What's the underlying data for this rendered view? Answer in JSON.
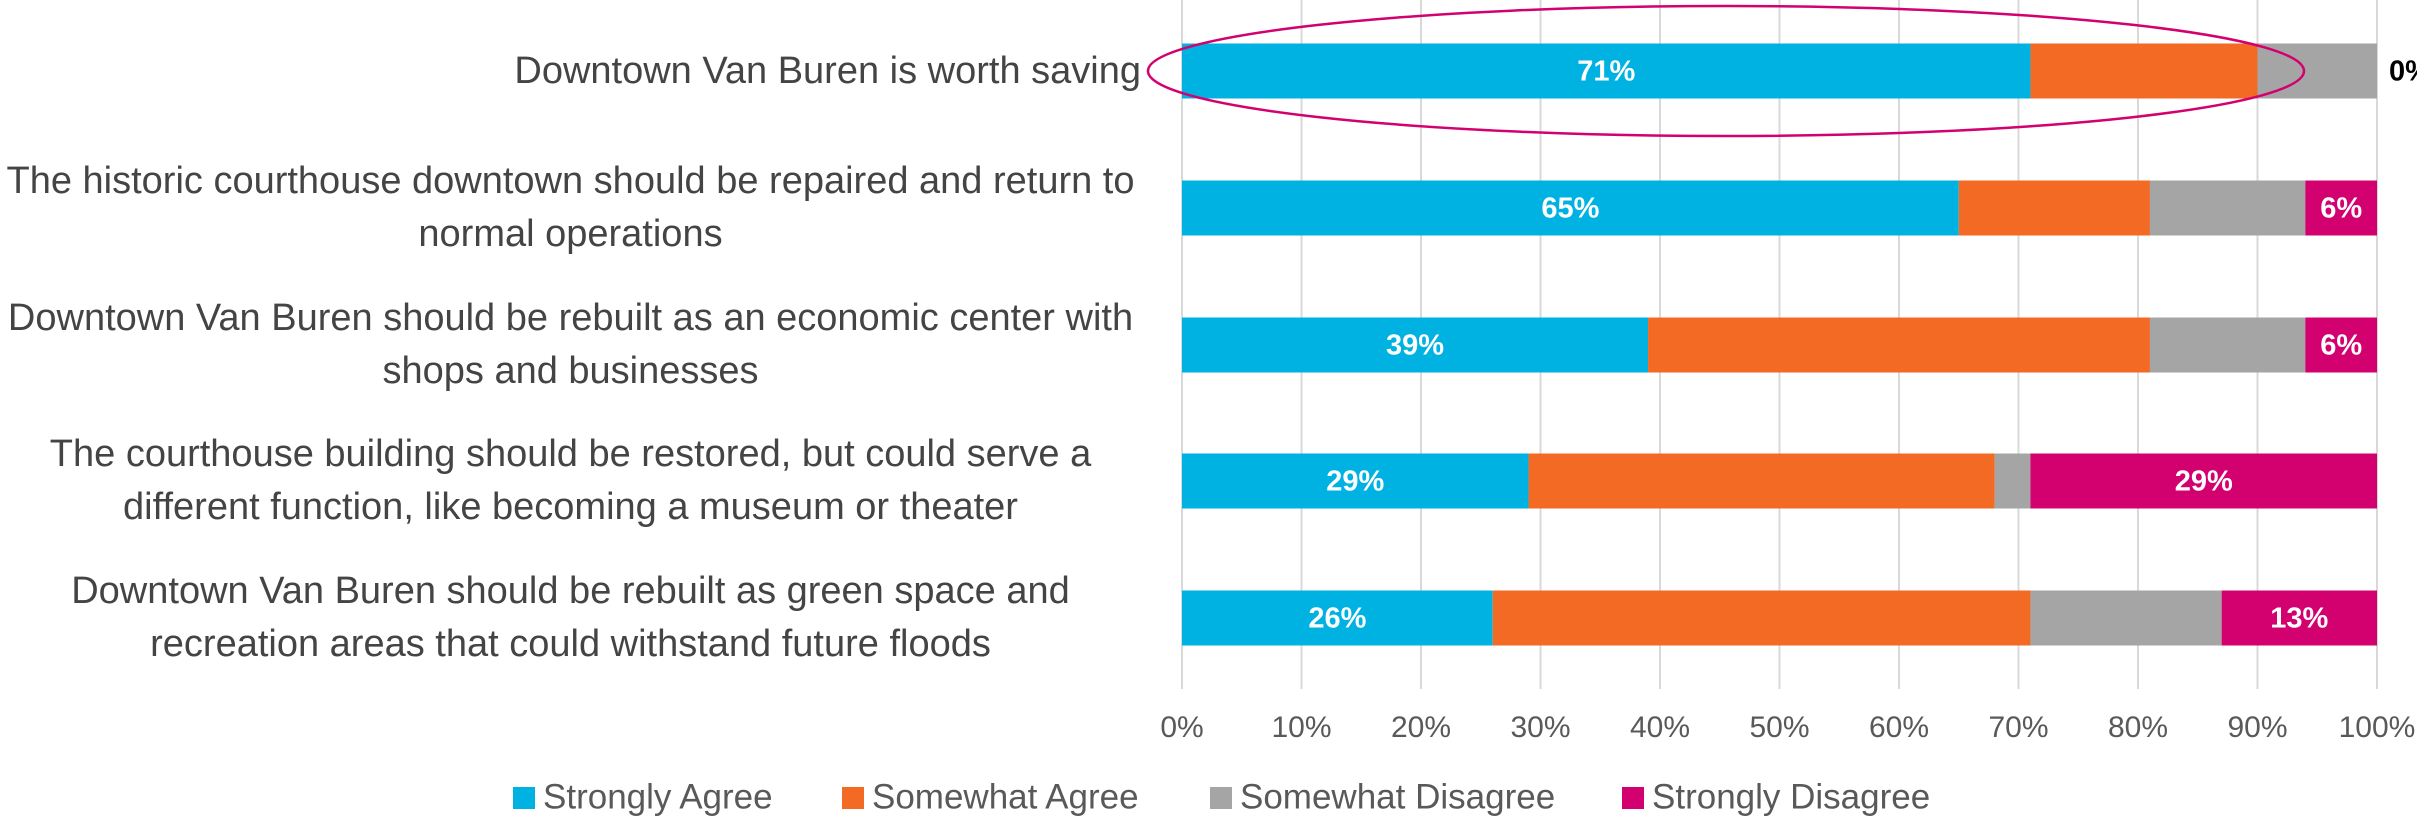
{
  "chart_data": {
    "type": "stacked-bar-horizontal",
    "categories": [
      "Downtown Van Buren is worth saving",
      "The historic courthouse downtown should be repaired and return to normal operations",
      "Downtown Van Buren should be rebuilt as an economic center with shops and businesses",
      "The courthouse building should be restored, but could serve a different function, like becoming a museum or theater",
      "Downtown Van Buren should be rebuilt as green space and recreation areas that could withstand future floods"
    ],
    "series": [
      {
        "name": "Strongly Agree",
        "color": "#00b2e2",
        "values": [
          71,
          65,
          39,
          29,
          26
        ],
        "value_labels": [
          "71%",
          "65%",
          "39%",
          "29%",
          "26%"
        ]
      },
      {
        "name": "Somewhat Agree",
        "color": "#f26a24",
        "values": [
          19,
          16,
          42,
          39,
          45
        ]
      },
      {
        "name": "Somewhat Disagree",
        "color": "#a5a5a5",
        "values": [
          10,
          13,
          13,
          3,
          16
        ]
      },
      {
        "name": "Strongly Disagree",
        "color": "#d3006f",
        "values": [
          0,
          6,
          6,
          29,
          13
        ],
        "value_labels": [
          "0%",
          "6%",
          "6%",
          "29%",
          "13%"
        ]
      }
    ],
    "xlim": [
      0,
      100
    ],
    "xticks": [
      {
        "value": 0,
        "label": "0%"
      },
      {
        "value": 10,
        "label": "10%"
      },
      {
        "value": 20,
        "label": "20%"
      },
      {
        "value": 30,
        "label": "30%"
      },
      {
        "value": 40,
        "label": "40%"
      },
      {
        "value": 50,
        "label": "50%"
      },
      {
        "value": 60,
        "label": "60%"
      },
      {
        "value": 70,
        "label": "70%"
      },
      {
        "value": 80,
        "label": "80%"
      },
      {
        "value": 90,
        "label": "90%"
      },
      {
        "value": 100,
        "label": "100%"
      }
    ],
    "grid": true,
    "legend": "bottom"
  }
}
